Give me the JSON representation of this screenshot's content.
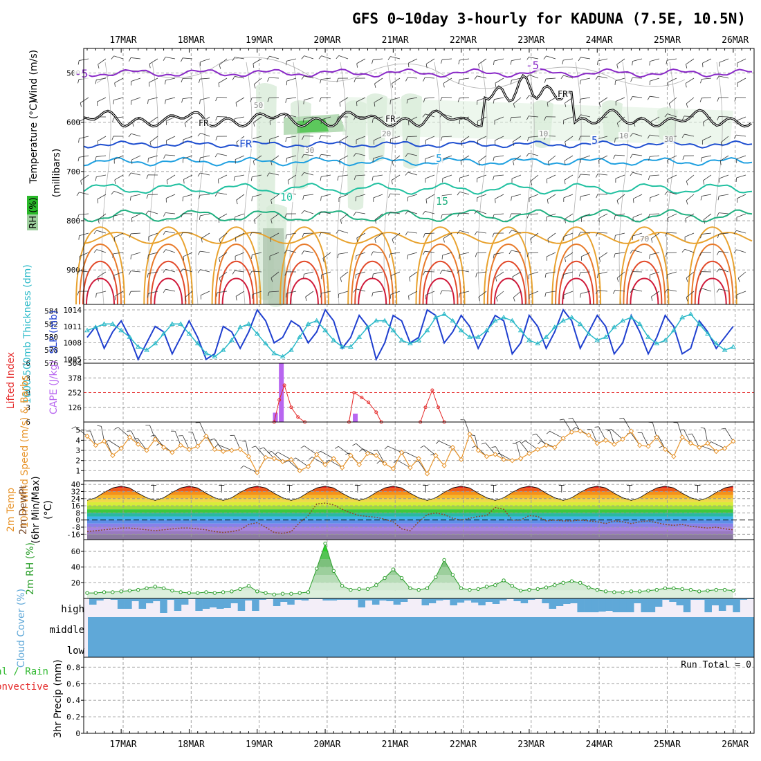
{
  "title": "GFS 0~10day 3-hourly for KADUNA (7.5E, 10.5N)",
  "colors": {
    "grid": "#9a9a9a",
    "slp": "#1f3fcf",
    "thickness": "#2ab9c8",
    "li": "#e52a2a",
    "cape": "#b866f0",
    "wind": "#e8952c",
    "rh2m": "#2a9e2a",
    "rhfill": "#7fd07f",
    "cloud": "#5fa8d8",
    "cloudbg": "#f3eef8",
    "temp500": "#8a2ac8",
    "fr": "#000000",
    "precipTotal": "#2eb82e",
    "precipConv": "#e52a2a"
  },
  "chart_data": [
    {
      "type": "contour",
      "panel": "upper-air",
      "x": [
        "17MAR",
        "18MAR",
        "19MAR",
        "20MAR",
        "21MAR",
        "22MAR",
        "23MAR",
        "24MAR",
        "25MAR",
        "26MAR"
      ],
      "ylabel": [
        "Wind (m/s)",
        "Temperature (°C)",
        "RH (%)",
        "(millibars)"
      ],
      "yticks": [
        500,
        600,
        700,
        800,
        900
      ],
      "ylim": [
        970,
        450
      ],
      "contour_labels": [
        "-5",
        "-5",
        "FR",
        "FR",
        "FR",
        "FR",
        "5",
        "5",
        "10",
        "15",
        "20",
        "30",
        "50",
        "70",
        "10",
        "10",
        "30"
      ],
      "isotherms": {
        "minus5": 500,
        "freezing": 600,
        "plus5": 645,
        "plus10": 680,
        "plus15": 735,
        "plus20": 790
      }
    },
    {
      "type": "line",
      "panel": "slp-thickness",
      "ylabel_left": "1000-500mb Thickness (dm)",
      "ylabel_right": "SLP (mb)",
      "yticks_left": [
        576,
        578,
        580,
        582,
        584
      ],
      "yticks_right": [
        1005,
        1008,
        1011,
        1014
      ],
      "ylim_left": [
        576,
        585
      ],
      "ylim_right": [
        1004.3,
        1015
      ],
      "series": [
        {
          "name": "SLP (mb)",
          "values": [
            1009,
            1011,
            1007,
            1010,
            1012,
            1009,
            1005,
            1008,
            1011,
            1010,
            1006,
            1009,
            1012,
            1009,
            1005,
            1006,
            1011,
            1010,
            1007,
            1010,
            1014,
            1012,
            1008,
            1009,
            1012,
            1011,
            1008,
            1010,
            1014,
            1012,
            1007,
            1009,
            1013,
            1011,
            1005,
            1008,
            1013,
            1012,
            1008,
            1009,
            1014,
            1013,
            1008,
            1010,
            1013,
            1011,
            1007,
            1010,
            1013,
            1012,
            1006,
            1008,
            1013,
            1011,
            1007,
            1010,
            1014,
            1012,
            1007,
            1010,
            1013,
            1011,
            1006,
            1008,
            1013,
            1010,
            1006,
            1009,
            1013,
            1011,
            1006,
            1007,
            1012,
            1010,
            1007,
            1009,
            1011
          ]
        },
        {
          "name": "1000-500mb Thickness (dm)",
          "values": [
            581,
            581.5,
            582,
            582,
            581,
            580,
            578.5,
            578,
            579,
            580.5,
            582,
            582,
            580.5,
            579,
            577.5,
            577,
            578,
            579.5,
            581.5,
            582,
            580.5,
            579,
            577.5,
            577,
            578,
            580,
            582,
            582.5,
            581,
            579.5,
            578.5,
            578.5,
            580,
            581.5,
            582.5,
            582.5,
            581,
            579.5,
            579,
            579.5,
            581,
            583,
            583.5,
            582.5,
            581,
            580,
            580,
            581,
            582.5,
            583,
            582.5,
            581,
            579.5,
            579,
            580,
            581.5,
            582.5,
            583,
            582,
            580.5,
            579.5,
            580,
            581.5,
            582.5,
            583,
            582,
            580,
            579,
            579.5,
            581,
            583,
            583.5,
            582,
            580.5,
            579,
            578,
            578.5
          ]
        }
      ]
    },
    {
      "type": "bar",
      "panel": "instability",
      "ylabel_left": "Lifted Index",
      "ylabel_right": "CAPE (J/kg)",
      "yticks_left": [
        6,
        3,
        0,
        -3,
        -6
      ],
      "yticks_right": [
        126,
        252,
        378,
        504
      ],
      "ylim_left": [
        6,
        -6
      ],
      "ylim_right": [
        0,
        504
      ],
      "cape": [
        {
          "t": 22.1,
          "value": 80
        },
        {
          "t": 22.8,
          "value": 504
        },
        {
          "t": 31.5,
          "value": 72
        }
      ],
      "lifted_index": [
        [
          22,
          6
        ],
        [
          22.6,
          1.5
        ],
        [
          23.2,
          -1.5
        ],
        [
          24,
          3
        ],
        [
          24.8,
          5
        ],
        [
          25.6,
          6
        ],
        null,
        [
          30.8,
          6
        ],
        [
          31.4,
          0
        ],
        [
          32.3,
          1
        ],
        [
          33.1,
          2
        ],
        [
          34,
          4
        ],
        [
          34.6,
          6
        ],
        null,
        [
          39.2,
          6
        ],
        [
          39.8,
          3
        ],
        [
          40.6,
          -0.5
        ],
        [
          41.3,
          3
        ],
        [
          42,
          6
        ]
      ]
    },
    {
      "type": "line",
      "panel": "surface-wind",
      "ylabel": "10m Wind Speed (m/s) & Barbs",
      "yticks": [
        1,
        2,
        3,
        4,
        5
      ],
      "ylim": [
        0,
        5.8
      ],
      "series": [
        {
          "name": "10m Wind Speed (m/s)",
          "values": [
            4.4,
            3.5,
            3.9,
            2.5,
            3.2,
            4.3,
            3.6,
            3,
            4.1,
            3.3,
            2.8,
            3.5,
            3.1,
            3.4,
            4.4,
            3.1,
            2.9,
            3,
            3.1,
            2.4,
            0.8,
            2.3,
            2.2,
            1.9,
            2.1,
            1,
            1.4,
            2.6,
            1.6,
            2.2,
            1.3,
            2.5,
            1.6,
            2.7,
            2.5,
            1.7,
            1.2,
            2.8,
            1.3,
            2.2,
            0.7,
            2.5,
            1.5,
            3.3,
            2.1,
            4.6,
            3,
            2.4,
            2.6,
            2.1,
            2,
            2.2,
            2.7,
            3.1,
            3.5,
            3.3,
            4.2,
            4.8,
            4.9,
            4.5,
            3.7,
            4,
            3.6,
            4.1,
            4.9,
            3.5,
            3.4,
            4.3,
            3.1,
            2.4,
            4.3,
            3.7,
            3.3,
            3.7,
            2.9,
            3.2,
            3.9
          ]
        }
      ]
    },
    {
      "type": "area",
      "panel": "surface-temperature",
      "ylabel": [
        "2m Temp",
        "2m DewPt",
        "(6hr Min/Max)",
        "(°C)"
      ],
      "yticks": [
        40,
        32,
        24,
        16,
        8,
        0,
        -8,
        -16
      ],
      "ylim": [
        -22,
        44
      ],
      "series": [
        {
          "name": "2m Temp",
          "values": [
            22,
            25,
            31,
            36,
            38,
            36,
            30,
            25,
            22,
            25,
            31,
            36,
            38,
            36,
            30,
            25,
            22,
            25,
            31,
            36,
            38,
            36,
            30,
            25,
            22,
            25,
            31,
            36,
            38,
            36,
            30,
            25,
            22,
            25,
            31,
            36,
            38,
            36,
            30,
            25,
            22,
            25,
            31,
            36,
            38,
            36,
            30,
            25,
            22,
            25,
            31,
            36,
            38,
            36,
            30,
            25,
            22,
            25,
            31,
            36,
            38,
            36,
            30,
            25,
            22,
            25,
            31,
            36,
            38,
            36,
            30,
            25,
            22,
            25,
            31,
            36,
            38
          ]
        },
        {
          "name": "2m DewPt",
          "values": [
            -13,
            -12,
            -11,
            -10,
            -9,
            -9,
            -10,
            -11,
            -12,
            -11,
            -10,
            -9,
            -9,
            -10,
            -11,
            -13,
            -14,
            -13,
            -11,
            -5,
            -3,
            -8,
            -14,
            -15,
            -13,
            -3,
            5,
            18,
            19,
            17,
            12,
            8,
            5,
            4,
            3,
            1,
            -2,
            -10,
            -12,
            -2,
            6,
            8,
            6,
            2,
            0,
            2,
            4,
            5,
            14,
            12,
            0,
            0,
            5,
            4,
            -1,
            0,
            -1,
            -1,
            0,
            -1,
            -2,
            -4,
            -1,
            -2,
            -4,
            -2,
            -1,
            -3,
            -5,
            -6,
            -5,
            -7,
            -8,
            -9,
            -8,
            -10,
            -11
          ]
        }
      ]
    },
    {
      "type": "area",
      "panel": "relative-humidity",
      "ylabel": "2m RH (%)",
      "yticks": [
        20,
        40,
        60
      ],
      "ylim": [
        0,
        75
      ],
      "series": [
        {
          "name": "2m RH",
          "values": [
            7,
            7,
            8,
            8,
            9,
            10,
            11,
            13,
            15,
            13,
            10,
            8,
            7,
            7,
            8,
            7,
            8,
            9,
            12,
            16,
            9,
            7,
            5,
            6,
            6,
            7,
            8,
            38,
            70,
            35,
            16,
            11,
            12,
            12,
            17,
            26,
            37,
            26,
            13,
            11,
            13,
            27,
            49,
            30,
            13,
            11,
            12,
            15,
            17,
            23,
            16,
            10,
            11,
            12,
            14,
            17,
            20,
            22,
            20,
            14,
            11,
            9,
            8,
            8,
            9,
            9,
            10,
            11,
            13,
            13,
            12,
            11,
            9,
            10,
            11,
            11,
            10
          ]
        }
      ]
    },
    {
      "type": "bar",
      "panel": "cloud-cover",
      "ylabel": "Cloud Cover (%)",
      "levels": [
        "high",
        "middle",
        "low"
      ],
      "high_cloud_pct": [
        18,
        6,
        2,
        4,
        30,
        30,
        8,
        30,
        14,
        8,
        42,
        4,
        36,
        18,
        2,
        36,
        30,
        26,
        30,
        28,
        14,
        36,
        6,
        36,
        4,
        2,
        22,
        10,
        18,
        4,
        6,
        2,
        2,
        6,
        6,
        4,
        4,
        4,
        26,
        6,
        18,
        6,
        8,
        18,
        10,
        2,
        2,
        20,
        14,
        6,
        4,
        20,
        12,
        6,
        12,
        20,
        10,
        16,
        6,
        2,
        8,
        14,
        4,
        2,
        14,
        30,
        22,
        16,
        14,
        40,
        40,
        40,
        38,
        36,
        40,
        40,
        40,
        14,
        40,
        40,
        24,
        4,
        10,
        20,
        40,
        4,
        4,
        40,
        20,
        36,
        20,
        40,
        4,
        2
      ]
    },
    {
      "type": "bar",
      "panel": "precipitation",
      "ylabel": "3hr Precip (mm)",
      "legend": [
        "Total / Rain",
        "Convective"
      ],
      "yticks": [
        0,
        0.2,
        0.4,
        0.6,
        0.8
      ],
      "ylim": [
        0,
        0.92
      ],
      "values": [],
      "annotation": "Run Total = 0"
    }
  ],
  "time_axis": {
    "labels": [
      "17MAR",
      "18MAR",
      "19MAR",
      "20MAR",
      "21MAR",
      "22MAR",
      "23MAR",
      "24MAR",
      "25MAR",
      "26MAR"
    ],
    "steps_per_day": 8
  }
}
